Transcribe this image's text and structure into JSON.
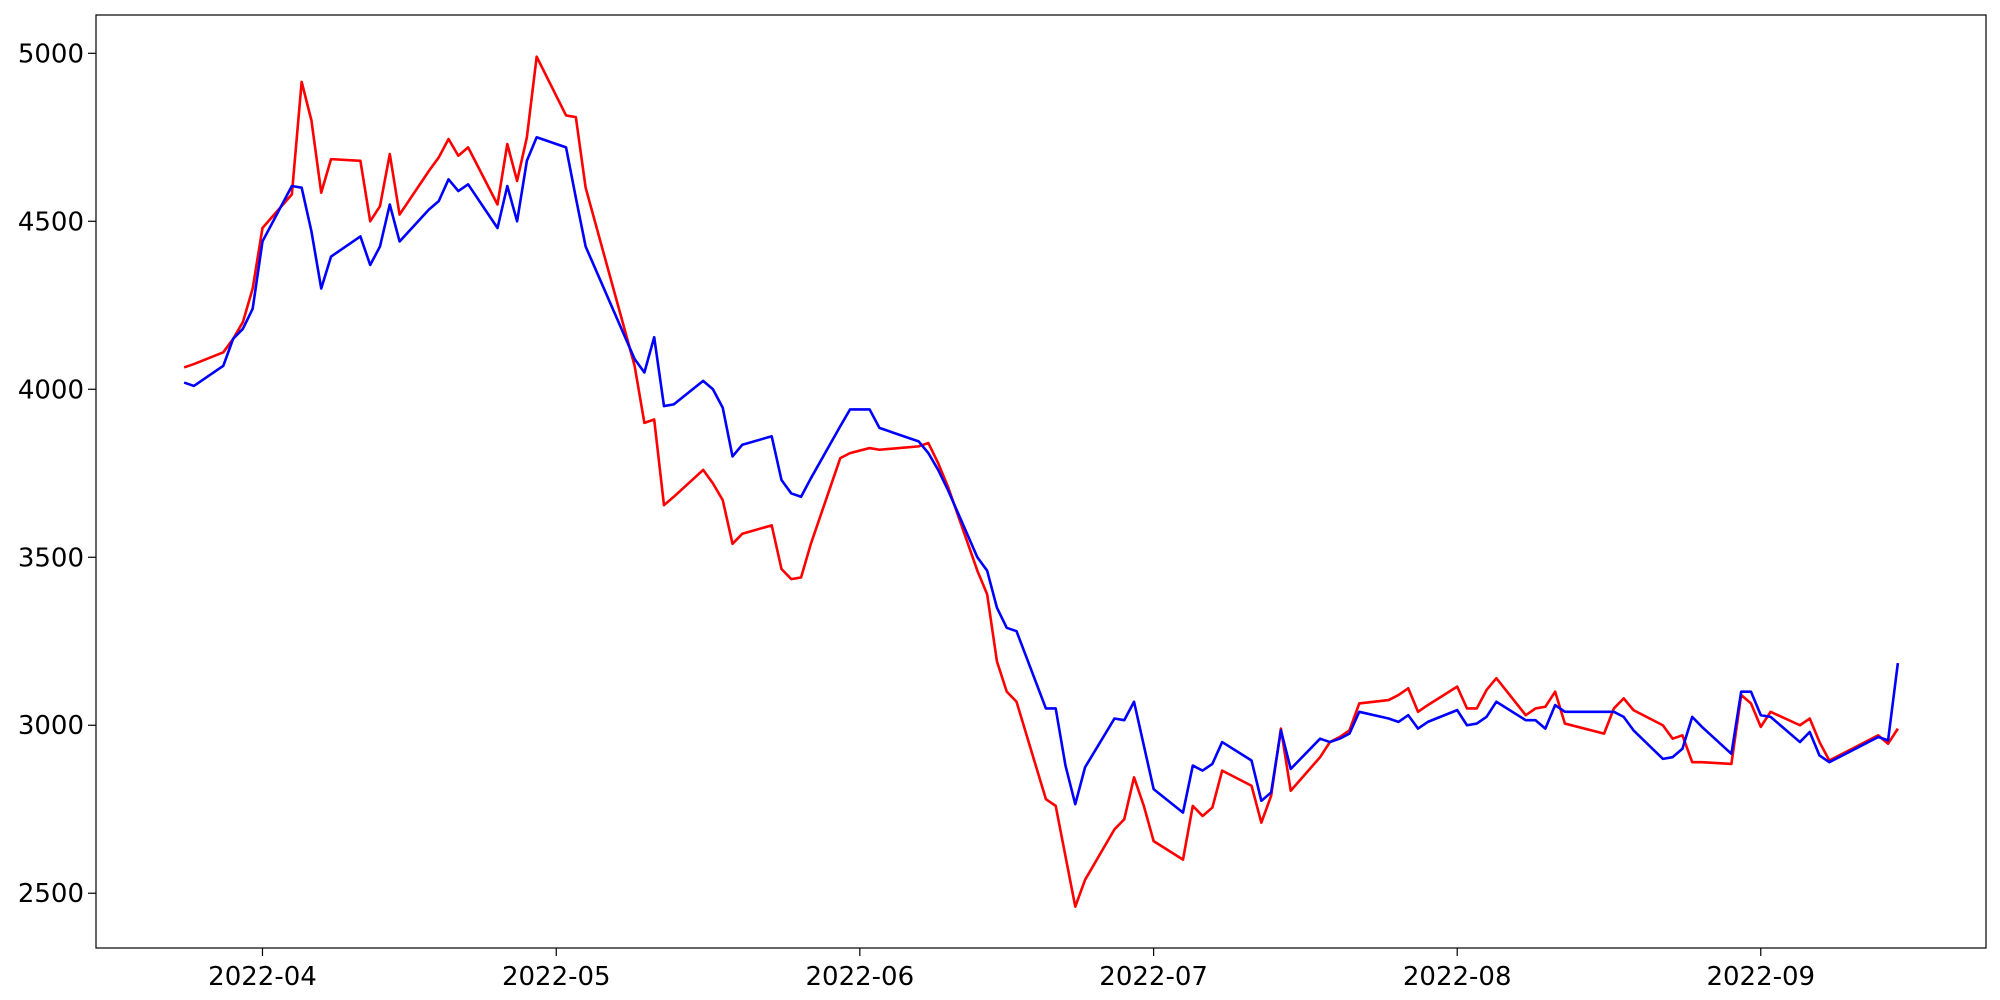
{
  "chart_data": {
    "type": "line",
    "x": [
      19075,
      19076,
      19079,
      19080,
      19081,
      19082,
      19083,
      19086,
      19087,
      19088,
      19089,
      19090,
      19093,
      19094,
      19095,
      19096,
      19097,
      19100,
      19101,
      19102,
      19103,
      19104,
      19107,
      19108,
      19109,
      19110,
      19111,
      19114,
      19115,
      19116,
      19121,
      19122,
      19123,
      19124,
      19125,
      19128,
      19129,
      19130,
      19131,
      19132,
      19135,
      19136,
      19137,
      19138,
      19139,
      19142,
      19143,
      19145,
      19146,
      19150,
      19151,
      19152,
      19153,
      19156,
      19157,
      19158,
      19159,
      19160,
      19163,
      19164,
      19165,
      19166,
      19167,
      19170,
      19171,
      19172,
      19173,
      19174,
      19177,
      19178,
      19179,
      19180,
      19181,
      19184,
      19185,
      19186,
      19187,
      19188,
      19191,
      19192,
      19193,
      19194,
      19195,
      19198,
      19199,
      19200,
      19201,
      19202,
      19205,
      19206,
      19207,
      19208,
      19209,
      19212,
      19213,
      19214,
      19215,
      19216,
      19220,
      19221,
      19222,
      19223,
      19226,
      19227,
      19228,
      19229,
      19230,
      19233,
      19234,
      19235,
      19236,
      19237,
      19240,
      19241,
      19242,
      19243,
      19248,
      19249,
      19250
    ],
    "series": [
      {
        "color": "#ff0000",
        "values": [
          4065,
          4075,
          4110,
          4150,
          4200,
          4300,
          4480,
          4580,
          4915,
          4800,
          4585,
          4685,
          4680,
          4500,
          4545,
          4700,
          4520,
          4650,
          4690,
          4745,
          4695,
          4720,
          4550,
          4730,
          4620,
          4750,
          4990,
          4815,
          4810,
          4600,
          4070,
          3900,
          3910,
          3655,
          3680,
          3760,
          3720,
          3670,
          3540,
          3570,
          3595,
          3465,
          3435,
          3440,
          3540,
          3795,
          3810,
          3825,
          3820,
          3830,
          3840,
          3780,
          3710,
          3460,
          3390,
          3190,
          3100,
          3070,
          2780,
          2760,
          2610,
          2460,
          2540,
          2690,
          2720,
          2845,
          2760,
          2655,
          2600,
          2760,
          2730,
          2755,
          2865,
          2820,
          2710,
          2790,
          2990,
          2805,
          2905,
          2950,
          2965,
          2985,
          3065,
          3075,
          3090,
          3110,
          3040,
          3060,
          3115,
          3050,
          3050,
          3105,
          3140,
          3030,
          3050,
          3055,
          3100,
          3005,
          2975,
          3050,
          3080,
          3045,
          3000,
          2960,
          2970,
          2890,
          2890,
          2885,
          3090,
          3065,
          2995,
          3040,
          3000,
          3020,
          2950,
          2895,
          2970,
          2945,
          2990
        ]
      },
      {
        "color": "#0000ff",
        "values": [
          4020,
          4010,
          4070,
          4150,
          4180,
          4240,
          4440,
          4605,
          4600,
          4470,
          4300,
          4395,
          4455,
          4370,
          4425,
          4550,
          4440,
          4535,
          4560,
          4625,
          4590,
          4610,
          4480,
          4605,
          4500,
          4680,
          4750,
          4720,
          4570,
          4425,
          4090,
          4050,
          4155,
          3950,
          3955,
          4025,
          4000,
          3945,
          3800,
          3835,
          3860,
          3730,
          3690,
          3680,
          3735,
          3890,
          3940,
          3940,
          3885,
          3845,
          3810,
          3760,
          3700,
          3500,
          3460,
          3350,
          3290,
          3280,
          3050,
          3050,
          2880,
          2765,
          2875,
          3020,
          3015,
          3070,
          2940,
          2810,
          2740,
          2880,
          2865,
          2885,
          2950,
          2895,
          2775,
          2800,
          2985,
          2870,
          2960,
          2950,
          2960,
          2975,
          3040,
          3020,
          3010,
          3030,
          2990,
          3010,
          3045,
          3000,
          3005,
          3025,
          3070,
          3015,
          3015,
          2990,
          3060,
          3040,
          3040,
          3040,
          3025,
          2985,
          2900,
          2905,
          2930,
          3025,
          2995,
          2915,
          3100,
          3100,
          3030,
          3025,
          2950,
          2980,
          2910,
          2890,
          2965,
          2955,
          3185
        ]
      }
    ],
    "xlim": [
      19066,
      19259
    ],
    "xticks": [
      {
        "value": 19083,
        "label": "2022-04"
      },
      {
        "value": 19113,
        "label": "2022-05"
      },
      {
        "value": 19144,
        "label": "2022-06"
      },
      {
        "value": 19174,
        "label": "2022-07"
      },
      {
        "value": 19205,
        "label": "2022-08"
      },
      {
        "value": 19236,
        "label": "2022-09"
      }
    ],
    "ylim": [
      2337,
      5114
    ],
    "yticks": [
      2500,
      3000,
      3500,
      4000,
      4500,
      5000
    ]
  }
}
